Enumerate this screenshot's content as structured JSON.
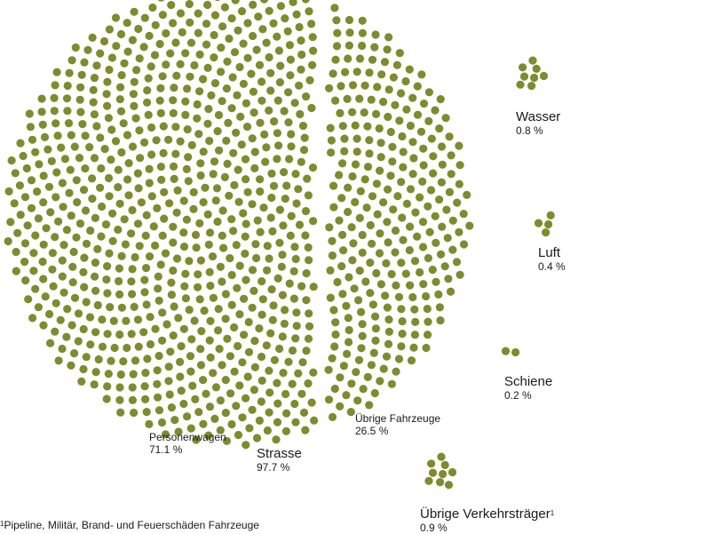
{
  "chart_data": {
    "type": "scatter",
    "title": "",
    "colors": {
      "dot": "#7c8c2e"
    },
    "groups": [
      {
        "name": "Personenwagen",
        "parent": "Strasse",
        "value": 71.1,
        "value_label": "71.1 %"
      },
      {
        "name": "Übrige Fahrzeuge",
        "parent": "Strasse",
        "value": 26.5,
        "value_label": "26.5 %"
      },
      {
        "name": "Strasse",
        "value": 97.7,
        "value_label": "97.7 %"
      },
      {
        "name": "Wasser",
        "value": 0.8,
        "value_label": "0.8 %"
      },
      {
        "name": "Luft",
        "value": 0.4,
        "value_label": "0.4 %"
      },
      {
        "name": "Schiene",
        "value": 0.2,
        "value_label": "0.2 %"
      },
      {
        "name": "Übrige Verkehrsträger",
        "name_note": "1",
        "value": 0.9,
        "value_label": "0.9 %"
      }
    ]
  },
  "footnote": {
    "marker": "1",
    "text": "Pipeline, Militär, Brand- und Feuerschäden Fahrzeuge"
  }
}
